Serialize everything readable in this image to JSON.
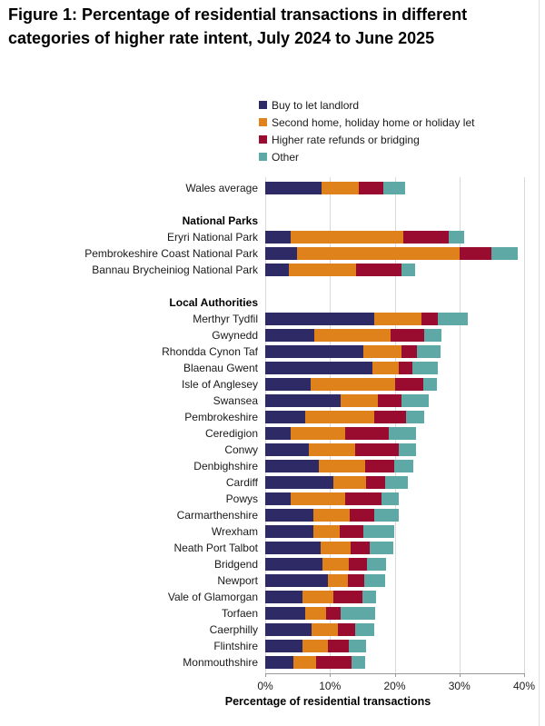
{
  "title": "Figure 1: Percentage of residential transactions in different categories of higher rate intent, July 2024 to June 2025",
  "chart_data": {
    "type": "bar",
    "orientation": "horizontal_stacked",
    "title": "Figure 1: Percentage of residential transactions in different categories of higher rate intent, July 2024 to June 2025",
    "xlabel": "Percentage of residential transactions",
    "xlim": [
      0,
      40
    ],
    "x_ticks": [
      "0%",
      "10%",
      "20%",
      "30%",
      "40%"
    ],
    "grid": true,
    "legend_position": "top",
    "series": [
      "Buy to let landlord",
      "Second home, holiday home or holiday let",
      "Higher rate refunds or bridging",
      "Other"
    ],
    "series_colors": [
      "#2d2a66",
      "#e0821b",
      "#990c30",
      "#5ea9a6"
    ],
    "rows": [
      {
        "type": "bar",
        "label": "Wales average",
        "values": [
          8.7,
          5.8,
          3.7,
          3.4
        ]
      },
      {
        "type": "spacer",
        "label": ""
      },
      {
        "type": "header",
        "label": "National Parks"
      },
      {
        "type": "bar",
        "label": "Eryri National Park",
        "values": [
          3.9,
          17.5,
          7.0,
          2.4
        ]
      },
      {
        "type": "bar",
        "label": "Pembrokeshire Coast National Park",
        "values": [
          4.9,
          25.1,
          5.0,
          4.0
        ]
      },
      {
        "type": "bar",
        "label": "Bannau Brycheiniog National Park",
        "values": [
          3.6,
          10.5,
          7.0,
          2.0
        ]
      },
      {
        "type": "spacer",
        "label": ""
      },
      {
        "type": "header",
        "label": "Local Authorities"
      },
      {
        "type": "bar",
        "label": "Merthyr Tydfil",
        "values": [
          16.9,
          7.2,
          2.6,
          4.6
        ]
      },
      {
        "type": "bar",
        "label": "Gwynedd",
        "values": [
          7.6,
          11.8,
          5.1,
          2.8
        ]
      },
      {
        "type": "bar",
        "label": "Rhondda Cynon Taf",
        "values": [
          15.2,
          5.9,
          2.3,
          3.7
        ]
      },
      {
        "type": "bar",
        "label": "Blaenau Gwent",
        "values": [
          16.6,
          4.0,
          2.2,
          3.8
        ]
      },
      {
        "type": "bar",
        "label": "Isle of Anglesey",
        "values": [
          7.0,
          13.0,
          4.4,
          2.1
        ]
      },
      {
        "type": "bar",
        "label": "Swansea",
        "values": [
          11.7,
          5.7,
          3.7,
          4.1
        ]
      },
      {
        "type": "bar",
        "label": "Pembrokeshire",
        "values": [
          6.2,
          10.6,
          5.0,
          2.7
        ]
      },
      {
        "type": "bar",
        "label": "Ceredigion",
        "values": [
          3.9,
          8.4,
          6.8,
          4.2
        ]
      },
      {
        "type": "bar",
        "label": "Conwy",
        "values": [
          6.7,
          7.2,
          6.8,
          2.6
        ]
      },
      {
        "type": "bar",
        "label": "Denbighshire",
        "values": [
          8.3,
          7.2,
          4.4,
          3.0
        ]
      },
      {
        "type": "bar",
        "label": "Cardiff",
        "values": [
          10.5,
          5.1,
          2.9,
          3.5
        ]
      },
      {
        "type": "bar",
        "label": "Powys",
        "values": [
          3.9,
          8.4,
          5.7,
          2.7
        ]
      },
      {
        "type": "bar",
        "label": "Carmarthenshire",
        "values": [
          7.4,
          5.6,
          3.9,
          3.7
        ]
      },
      {
        "type": "bar",
        "label": "Wrexham",
        "values": [
          7.4,
          4.1,
          3.7,
          4.7
        ]
      },
      {
        "type": "bar",
        "label": "Neath Port Talbot",
        "values": [
          8.6,
          4.6,
          2.9,
          3.7
        ]
      },
      {
        "type": "bar",
        "label": "Bridgend",
        "values": [
          8.9,
          4.0,
          2.8,
          2.9
        ]
      },
      {
        "type": "bar",
        "label": "Newport",
        "values": [
          9.7,
          3.1,
          2.5,
          3.2
        ]
      },
      {
        "type": "bar",
        "label": "Vale of Glamorgan",
        "values": [
          5.7,
          4.8,
          4.5,
          2.1
        ]
      },
      {
        "type": "bar",
        "label": "Torfaen",
        "values": [
          6.2,
          3.2,
          2.3,
          5.3
        ]
      },
      {
        "type": "bar",
        "label": "Caerphilly",
        "values": [
          7.1,
          4.1,
          2.7,
          2.9
        ]
      },
      {
        "type": "bar",
        "label": "Flintshire",
        "values": [
          5.7,
          4.0,
          3.2,
          2.7
        ]
      },
      {
        "type": "bar",
        "label": "Monmouthshire",
        "values": [
          4.3,
          3.5,
          5.6,
          2.1
        ]
      }
    ]
  }
}
